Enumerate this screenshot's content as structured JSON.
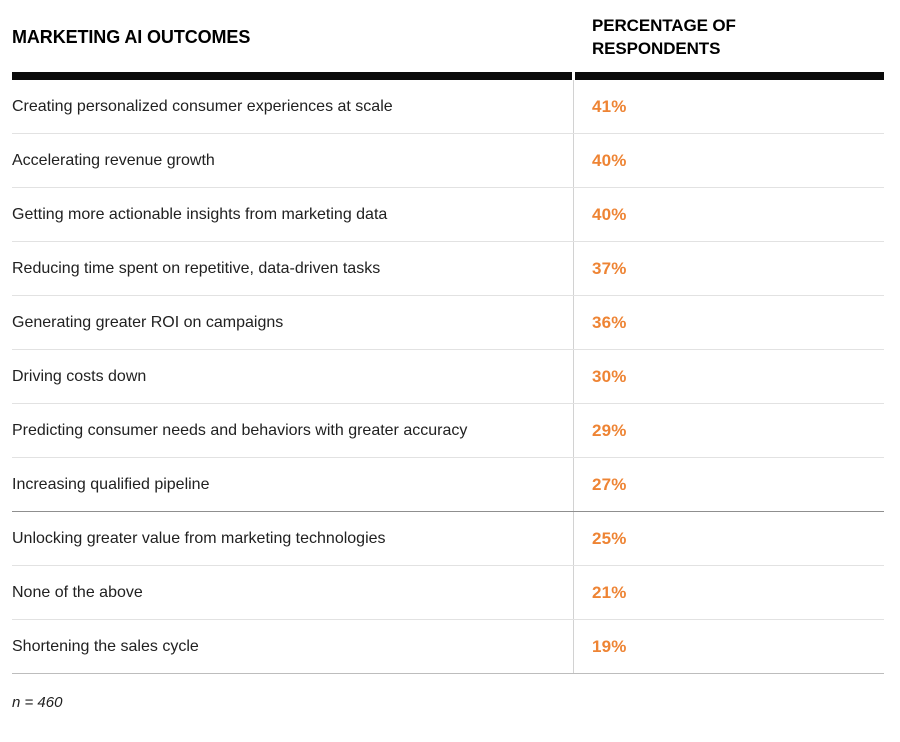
{
  "table": {
    "col1_header": "MARKETING AI OUTCOMES",
    "col2_header": "PERCENTAGE OF RESPONDENTS",
    "rows": [
      {
        "label": "Creating personalized consumer experiences at scale",
        "value": "41%"
      },
      {
        "label": "Accelerating revenue growth",
        "value": "40%"
      },
      {
        "label": "Getting more actionable insights from marketing data",
        "value": "40%"
      },
      {
        "label": "Reducing time spent on repetitive, data-driven tasks",
        "value": "37%"
      },
      {
        "label": "Generating greater ROI on campaigns",
        "value": "36%"
      },
      {
        "label": "Driving costs down",
        "value": "30%"
      },
      {
        "label": "Predicting consumer needs and behaviors with greater accuracy",
        "value": "29%"
      },
      {
        "label": "Increasing qualified pipeline",
        "value": "27%"
      },
      {
        "label": "Unlocking greater value from marketing technologies",
        "value": "25%"
      },
      {
        "label": "None of the above",
        "value": "21%"
      },
      {
        "label": "Shortening the sales cycle",
        "value": "19%"
      }
    ],
    "footnote": "n = 460"
  },
  "colors": {
    "accent_orange": "#EE8434",
    "header_rule": "#0a0a0a",
    "row_divider": "#e2e2e2",
    "section_divider_dark": "#8f8f8f",
    "bottom_divider": "#bdbdbd",
    "column_divider": "#d2d2d2",
    "body_text": "#212121"
  },
  "chart_data": {
    "type": "table",
    "title": "MARKETING AI OUTCOMES",
    "columns": [
      "Marketing AI Outcomes",
      "Percentage of Respondents"
    ],
    "categories": [
      "Creating personalized consumer experiences at scale",
      "Accelerating revenue growth",
      "Getting more actionable insights from marketing data",
      "Reducing time spent on repetitive, data-driven tasks",
      "Generating greater ROI on campaigns",
      "Driving costs down",
      "Predicting consumer needs and behaviors with greater accuracy",
      "Increasing qualified pipeline",
      "Unlocking greater value from marketing technologies",
      "None of the above",
      "Shortening the sales cycle"
    ],
    "values": [
      41,
      40,
      40,
      37,
      36,
      30,
      29,
      27,
      25,
      21,
      19
    ],
    "unit": "%",
    "sample_size_note": "n = 460",
    "value_color": "#EE8434"
  }
}
